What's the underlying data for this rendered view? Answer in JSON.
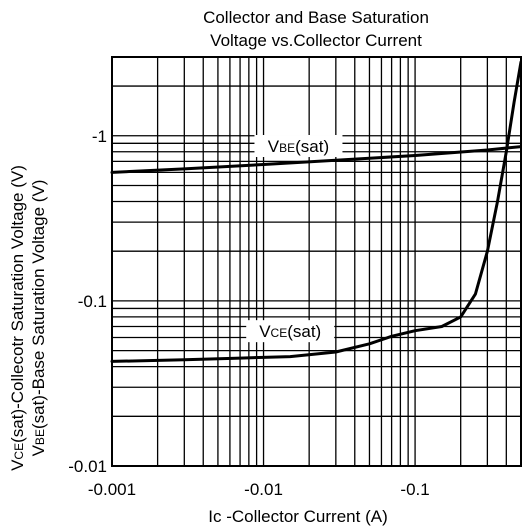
{
  "chart_data": {
    "type": "line",
    "title_line1": "Collector and Base Saturation",
    "title_line2": "Voltage vs.Collector Current",
    "xlabel": "Ic -Collector Current  (A)",
    "ylabel_line1": {
      "pre": "V",
      "sub": "CE",
      "post": "(sat)-Collecotr Saturation Voltage  (V)"
    },
    "ylabel_line2": {
      "pre": "V",
      "sub": "BE",
      "post": "(sat)-Base Saturation Voltage  (V)"
    },
    "x_scale": "log",
    "y_scale": "log",
    "xlim": [
      -0.001,
      -0.5
    ],
    "ylim": [
      -0.01,
      -3
    ],
    "x_ticks": [
      "-0.001",
      "-0.01",
      "-0.1"
    ],
    "y_ticks": [
      "-1",
      "-0.1",
      "-0.01"
    ],
    "grid": true,
    "series": [
      {
        "name": "VBE(sat)",
        "label": {
          "pre": "V",
          "sub": "BE",
          "post": "(sat)"
        },
        "x": [
          -0.001,
          -0.003,
          -0.01,
          -0.03,
          -0.1,
          -0.3,
          -0.5
        ],
        "y": [
          -0.6,
          -0.63,
          -0.67,
          -0.71,
          -0.76,
          -0.82,
          -0.86
        ]
      },
      {
        "name": "VCE(sat)",
        "label": {
          "pre": "V",
          "sub": "CE",
          "post": "(sat)"
        },
        "x": [
          -0.001,
          -0.003,
          -0.007,
          -0.015,
          -0.03,
          -0.05,
          -0.07,
          -0.1,
          -0.15,
          -0.2,
          -0.25,
          -0.3,
          -0.35,
          -0.4,
          -0.45,
          -0.5
        ],
        "y": [
          -0.043,
          -0.044,
          -0.045,
          -0.046,
          -0.049,
          -0.055,
          -0.061,
          -0.066,
          -0.07,
          -0.08,
          -0.11,
          -0.2,
          -0.4,
          -0.8,
          -1.6,
          -2.8
        ]
      }
    ]
  }
}
